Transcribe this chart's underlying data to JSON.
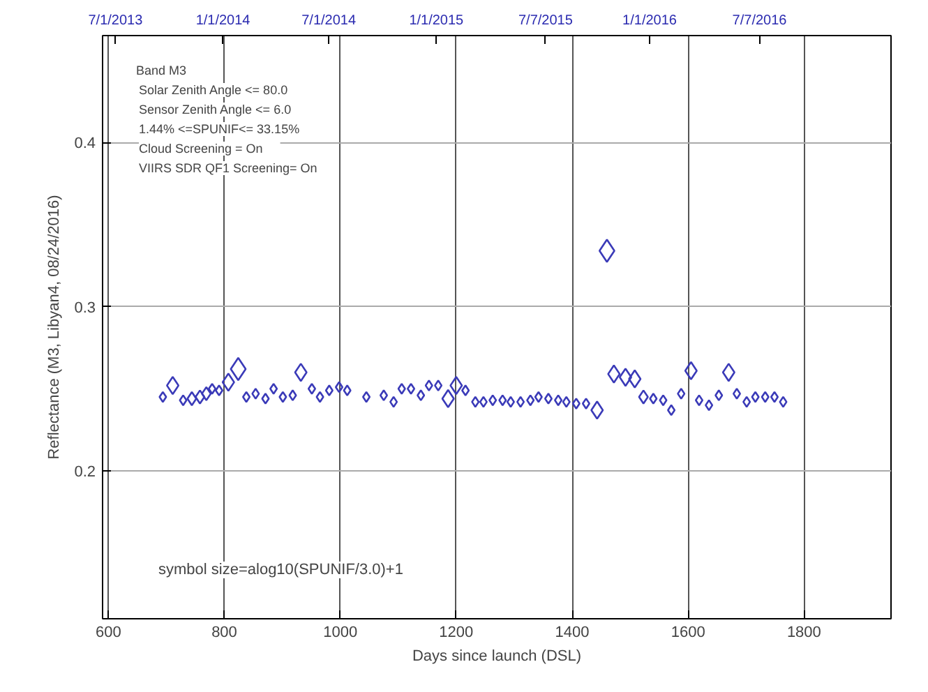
{
  "chart_data": {
    "type": "scatter",
    "xlabel": "Days since launch (DSL)",
    "ylabel": "Reflectance (M3, Libyan4, 08/24/2016)",
    "xlim": [
      590,
      1950
    ],
    "xticks": [
      600,
      800,
      1000,
      1200,
      1400,
      1600,
      1800
    ],
    "ylim": [
      0.11,
      0.465
    ],
    "yticks": [
      0.2,
      0.3,
      0.4
    ],
    "x2lim": [
      "2013-06-09",
      "2017-02-17"
    ],
    "x2ticks": [
      {
        "value": "2013-07-01",
        "label": "7/1/2013"
      },
      {
        "value": "2014-01-01",
        "label": "1/1/2014"
      },
      {
        "value": "2014-07-01",
        "label": "7/1/2014"
      },
      {
        "value": "2015-01-01",
        "label": "1/1/2015"
      },
      {
        "value": "2015-07-07",
        "label": "7/7/2015"
      },
      {
        "value": "2016-01-01",
        "label": "1/1/2016"
      },
      {
        "value": "2016-07-07",
        "label": "7/7/2016"
      }
    ],
    "grid": true,
    "marker": "diamond",
    "annotations": [
      "Band M3",
      "Solar Zenith Angle    <=    80.0",
      "Sensor Zenith Angle <=    6.0",
      "1.44% <=SPUNIF<=  33.15%",
      "Cloud Screening      = On",
      "VIIRS SDR QF1 Screening= On",
      "symbol size=alog10(SPUNIF/3.0)+1"
    ],
    "series": [
      {
        "color": "#3a3ab8",
        "x": [
          694,
          711,
          729,
          744,
          758,
          769,
          779,
          791,
          807,
          824,
          838,
          854,
          871,
          885,
          901,
          918,
          932,
          951,
          965,
          981,
          998,
          1012,
          1045,
          1075,
          1092,
          1106,
          1122,
          1139,
          1153,
          1169,
          1186,
          1200,
          1216,
          1233,
          1247,
          1263,
          1280,
          1294,
          1311,
          1328,
          1342,
          1359,
          1376,
          1390,
          1407,
          1424,
          1443,
          1460,
          1472,
          1492,
          1508,
          1523,
          1540,
          1557,
          1571,
          1588,
          1605,
          1619,
          1636,
          1653,
          1670,
          1684,
          1701,
          1716,
          1733,
          1749,
          1764
        ],
        "values": [
          0.245,
          0.252,
          0.243,
          0.244,
          0.245,
          0.247,
          0.25,
          0.249,
          0.254,
          0.262,
          0.245,
          0.247,
          0.244,
          0.25,
          0.245,
          0.246,
          0.26,
          0.25,
          0.245,
          0.249,
          0.251,
          0.249,
          0.245,
          0.246,
          0.242,
          0.25,
          0.25,
          0.246,
          0.252,
          0.252,
          0.244,
          0.252,
          0.249,
          0.242,
          0.242,
          0.243,
          0.243,
          0.242,
          0.242,
          0.243,
          0.245,
          0.244,
          0.243,
          0.242,
          0.241,
          0.241,
          0.237,
          0.334,
          0.259,
          0.257,
          0.256,
          0.245,
          0.244,
          0.243,
          0.237,
          0.247,
          0.261,
          0.243,
          0.24,
          0.246,
          0.26,
          0.247,
          0.242,
          0.245,
          0.245,
          0.245,
          0.242
        ],
        "sizes": [
          0.2,
          0.6,
          0.2,
          0.35,
          0.35,
          0.35,
          0.2,
          0.2,
          0.6,
          1,
          0.2,
          0.2,
          0.2,
          0.2,
          0.2,
          0.2,
          0.6,
          0.2,
          0.2,
          0.2,
          0.2,
          0.2,
          0.2,
          0.2,
          0.2,
          0.2,
          0.2,
          0.2,
          0.2,
          0.2,
          0.6,
          0.6,
          0.2,
          0.2,
          0.2,
          0.2,
          0.2,
          0.2,
          0.2,
          0.2,
          0.2,
          0.2,
          0.2,
          0.2,
          0.2,
          0.2,
          0.6,
          1,
          0.6,
          0.6,
          0.6,
          0.35,
          0.2,
          0.2,
          0.2,
          0.2,
          0.6,
          0.2,
          0.2,
          0.2,
          0.6,
          0.2,
          0.2,
          0.2,
          0.2,
          0.2,
          0.2
        ]
      }
    ]
  }
}
